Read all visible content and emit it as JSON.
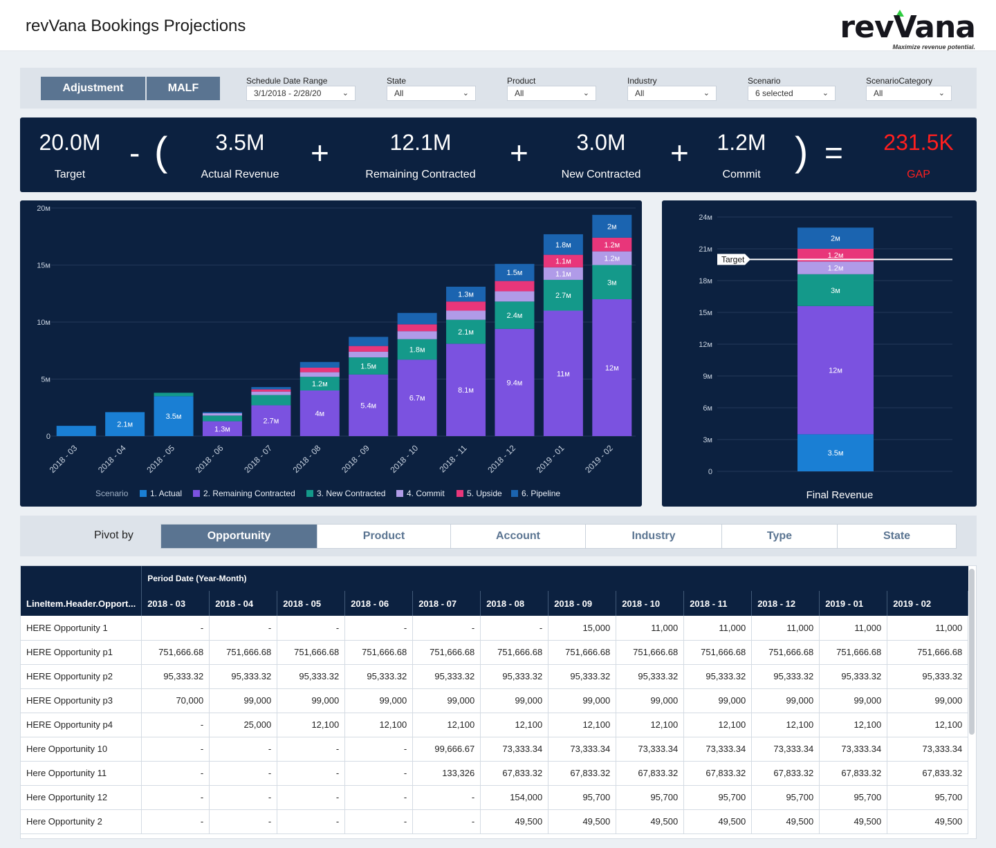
{
  "header": {
    "title": "revVana Bookings Projections",
    "logo_text": "revVana",
    "tagline": "Maximize revenue potential."
  },
  "toggle": {
    "adjustment": "Adjustment",
    "malf": "MALF"
  },
  "filters": [
    {
      "label": "Schedule Date Range",
      "value": "3/1/2018 - 2/28/20"
    },
    {
      "label": "State",
      "value": "All"
    },
    {
      "label": "Product",
      "value": "All"
    },
    {
      "label": "Industry",
      "value": "All"
    },
    {
      "label": "Scenario",
      "value": "6 selected"
    },
    {
      "label": "ScenarioCategory",
      "value": "All"
    }
  ],
  "kpis": {
    "target": {
      "value": "20.0M",
      "label": "Target"
    },
    "actual": {
      "value": "3.5M",
      "label": "Actual Revenue"
    },
    "remaining": {
      "value": "12.1M",
      "label": "Remaining Contracted"
    },
    "new": {
      "value": "3.0M",
      "label": "New Contracted"
    },
    "commit": {
      "value": "1.2M",
      "label": "Commit"
    },
    "gap": {
      "value": "231.5K",
      "label": "GAP"
    },
    "ops": {
      "minus": "-",
      "open": "(",
      "plus": "+",
      "close": ")",
      "equals": "="
    },
    "gap_color": "#ff1f1f"
  },
  "colors": {
    "actual": "#1a7fd4",
    "remaining": "#7b52e0",
    "new": "#14998a",
    "commit": "#b09be8",
    "upside": "#e8367a",
    "pipeline": "#1b64b0"
  },
  "chart_data": [
    {
      "type": "bar",
      "stacked": true,
      "categories": [
        "2018 - 03",
        "2018 - 04",
        "2018 - 05",
        "2018 - 06",
        "2018 - 07",
        "2018 - 08",
        "2018 - 09",
        "2018 - 10",
        "2018 - 11",
        "2018 - 12",
        "2019 - 01",
        "2019 - 02"
      ],
      "legend_title": "Scenario",
      "legend_position": "bottom",
      "ylim": [
        0,
        20
      ],
      "yticks": [
        "0",
        "5м",
        "10м",
        "15м",
        "20м"
      ],
      "series": [
        {
          "name": "1. Actual",
          "key": "actual",
          "values": [
            0.9,
            2.1,
            3.5,
            0,
            0,
            0,
            0,
            0,
            0,
            0,
            0,
            0
          ]
        },
        {
          "name": "2. Remaining Contracted",
          "key": "remaining",
          "values": [
            0,
            0,
            0,
            1.3,
            2.7,
            4.0,
            5.4,
            6.7,
            8.1,
            9.4,
            11,
            12
          ]
        },
        {
          "name": "3. New Contracted",
          "key": "new",
          "values": [
            0,
            0,
            0.3,
            0.5,
            0.9,
            1.2,
            1.5,
            1.8,
            2.1,
            2.4,
            2.7,
            3
          ]
        },
        {
          "name": "4. Commit",
          "key": "commit",
          "values": [
            0,
            0,
            0,
            0.2,
            0.3,
            0.4,
            0.5,
            0.7,
            0.8,
            0.9,
            1.1,
            1.2
          ]
        },
        {
          "name": "5. Upside",
          "key": "upside",
          "values": [
            0,
            0,
            0,
            0,
            0.2,
            0.4,
            0.5,
            0.6,
            0.8,
            0.9,
            1.1,
            1.2
          ]
        },
        {
          "name": "6. Pipeline",
          "key": "pipeline",
          "values": [
            0,
            0,
            0,
            0.1,
            0.2,
            0.5,
            0.8,
            1.0,
            1.3,
            1.5,
            1.8,
            2
          ]
        }
      ],
      "data_labels": [
        [
          "",
          "2.1м",
          "3.5м",
          "",
          "",
          "",
          "",
          "",
          "",
          "",
          "",
          ""
        ],
        [
          "",
          "",
          "",
          "1.3м",
          "2.7м",
          "4м",
          "5.4м",
          "6.7м",
          "8.1м",
          "9.4м",
          "11м",
          "12м"
        ],
        [
          "",
          "",
          "",
          "",
          "",
          "1.2м",
          "1.5м",
          "1.8м",
          "2.1м",
          "2.4м",
          "2.7м",
          "3м"
        ],
        [
          "",
          "",
          "",
          "",
          "",
          "",
          "",
          "",
          "",
          "",
          "1.1м",
          "1.2м"
        ],
        [
          "",
          "",
          "",
          "",
          "",
          "",
          "",
          "",
          "",
          "",
          "1.1м",
          "1.2м"
        ],
        [
          "",
          "",
          "",
          "",
          "",
          "",
          "",
          "",
          "1.3м",
          "1.5м",
          "1.8м",
          "2м"
        ]
      ]
    },
    {
      "type": "bar",
      "stacked": true,
      "categories": [
        "Final Revenue"
      ],
      "xlabel": "Final Revenue",
      "ylim": [
        0,
        24
      ],
      "yticks": [
        "0",
        "3м",
        "6м",
        "9м",
        "12м",
        "15м",
        "18м",
        "21м",
        "24м"
      ],
      "target": {
        "value": 20,
        "label": "Target"
      },
      "series": [
        {
          "key": "actual",
          "values": [
            3.5
          ],
          "label": "3.5м"
        },
        {
          "key": "remaining",
          "values": [
            12.1
          ],
          "label": "12м"
        },
        {
          "key": "new",
          "values": [
            3.0
          ],
          "label": "3м"
        },
        {
          "key": "commit",
          "values": [
            1.2
          ],
          "label": "1.2м"
        },
        {
          "key": "upside",
          "values": [
            1.2
          ],
          "label": "1.2м"
        },
        {
          "key": "pipeline",
          "values": [
            2.0
          ],
          "label": "2м"
        }
      ]
    }
  ],
  "pivot": {
    "label": "Pivot by",
    "tabs": [
      "Opportunity",
      "Product",
      "Account",
      "Industry",
      "Type",
      "State"
    ],
    "active": 0
  },
  "table": {
    "group_header": "Period Date (Year-Month)",
    "row_header": "LineItem.Header.Opport...",
    "columns": [
      "2018 - 03",
      "2018 - 04",
      "2018 - 05",
      "2018 - 06",
      "2018 - 07",
      "2018 - 08",
      "2018 - 09",
      "2018 - 10",
      "2018 - 11",
      "2018 - 12",
      "2019 - 01",
      "2019 - 02"
    ],
    "rows": [
      {
        "name": "HERE Opportunity 1",
        "cells": [
          "-",
          "-",
          "-",
          "-",
          "-",
          "-",
          "15,000",
          "11,000",
          "11,000",
          "11,000",
          "11,000",
          "11,000"
        ]
      },
      {
        "name": "HERE Opportunity p1",
        "cells": [
          "751,666.68",
          "751,666.68",
          "751,666.68",
          "751,666.68",
          "751,666.68",
          "751,666.68",
          "751,666.68",
          "751,666.68",
          "751,666.68",
          "751,666.68",
          "751,666.68",
          "751,666.68"
        ]
      },
      {
        "name": "HERE Opportunity p2",
        "cells": [
          "95,333.32",
          "95,333.32",
          "95,333.32",
          "95,333.32",
          "95,333.32",
          "95,333.32",
          "95,333.32",
          "95,333.32",
          "95,333.32",
          "95,333.32",
          "95,333.32",
          "95,333.32"
        ]
      },
      {
        "name": "HERE Opportunity p3",
        "cells": [
          "70,000",
          "99,000",
          "99,000",
          "99,000",
          "99,000",
          "99,000",
          "99,000",
          "99,000",
          "99,000",
          "99,000",
          "99,000",
          "99,000"
        ]
      },
      {
        "name": "HERE Opportunity p4",
        "cells": [
          "-",
          "25,000",
          "12,100",
          "12,100",
          "12,100",
          "12,100",
          "12,100",
          "12,100",
          "12,100",
          "12,100",
          "12,100",
          "12,100"
        ]
      },
      {
        "name": "Here Opportunity 10",
        "cells": [
          "-",
          "-",
          "-",
          "-",
          "99,666.67",
          "73,333.34",
          "73,333.34",
          "73,333.34",
          "73,333.34",
          "73,333.34",
          "73,333.34",
          "73,333.34"
        ]
      },
      {
        "name": "Here Opportunity 11",
        "cells": [
          "-",
          "-",
          "-",
          "-",
          "133,326",
          "67,833.32",
          "67,833.32",
          "67,833.32",
          "67,833.32",
          "67,833.32",
          "67,833.32",
          "67,833.32"
        ]
      },
      {
        "name": "Here Opportunity 12",
        "cells": [
          "-",
          "-",
          "-",
          "-",
          "-",
          "154,000",
          "95,700",
          "95,700",
          "95,700",
          "95,700",
          "95,700",
          "95,700"
        ]
      },
      {
        "name": "Here Opportunity 2",
        "cells": [
          "-",
          "-",
          "-",
          "-",
          "-",
          "49,500",
          "49,500",
          "49,500",
          "49,500",
          "49,500",
          "49,500",
          "49,500"
        ]
      }
    ]
  }
}
